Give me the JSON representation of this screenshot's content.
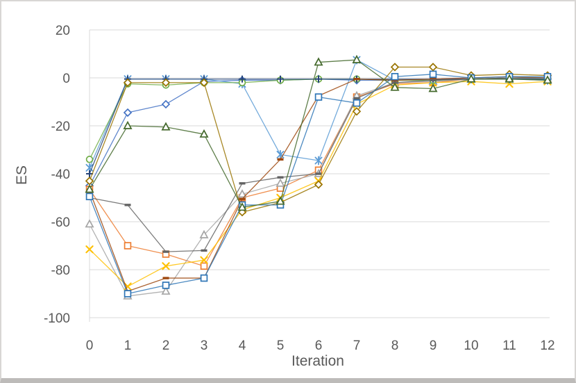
{
  "figure": {
    "background": "#FFFFFF",
    "frame_border_color": "#D8D6D4",
    "bottom_bar_color": "#BDBBB9"
  },
  "chart_data": {
    "type": "line",
    "title": "",
    "xlabel": "Iteration",
    "ylabel": "ES",
    "xlim": [
      0,
      12
    ],
    "ylim": [
      -100,
      20
    ],
    "grid": "horizontal",
    "gridline_color": "#D9D9D9",
    "axis_line_color": "#D9D9D9",
    "tick_label_color": "#595959",
    "legend_position": "none",
    "xticks": [
      0,
      1,
      2,
      3,
      4,
      5,
      6,
      7,
      8,
      9,
      10,
      11,
      12
    ],
    "xtick_labels": [
      "0",
      "1",
      "2",
      "3",
      "4",
      "5",
      "6",
      "7",
      "8",
      "9",
      "10",
      "11",
      "12"
    ],
    "yticks": [
      20,
      0,
      -20,
      -40,
      -60,
      -80,
      -100
    ],
    "ytick_labels": [
      "20",
      "0",
      "-20",
      "-40",
      "-60",
      "-80",
      "-100"
    ],
    "x": [
      0,
      1,
      2,
      3,
      4,
      5,
      6,
      7,
      8,
      9,
      10,
      11,
      12
    ],
    "series": [
      {
        "name": "blue-diamond",
        "marker": "diamond",
        "color": "#4472C4",
        "values": [
          -45,
          -14.5,
          -11,
          -1.5,
          -1,
          -1,
          -0.5,
          -1,
          -1,
          -0.5,
          -0.5,
          -0.5,
          -0.5
        ]
      },
      {
        "name": "orange-square",
        "marker": "square",
        "color": "#ED7D31",
        "values": [
          -46.5,
          -70,
          -73.5,
          -78.5,
          -50,
          -46,
          -38.5,
          -8,
          -2.5,
          -2,
          -0.5,
          0,
          0
        ]
      },
      {
        "name": "gray-triangle",
        "marker": "triangle",
        "color": "#A5A5A5",
        "values": [
          -61,
          -91,
          -89,
          -65.5,
          -48.5,
          -44,
          -40,
          -7.5,
          -2,
          -1.5,
          -0.5,
          0,
          -0.5
        ]
      },
      {
        "name": "gold-x",
        "marker": "x",
        "color": "#FFC000",
        "values": [
          -71.5,
          -87,
          -78.5,
          -76,
          -55,
          -50,
          -43,
          -11,
          -3,
          -2,
          -1.5,
          -2.5,
          -1.5
        ]
      },
      {
        "name": "ltblue-asterisk",
        "marker": "asterisk",
        "color": "#5B9BD5",
        "values": [
          -37.5,
          -0.5,
          -0.5,
          -0.5,
          -2.5,
          -32,
          -34.5,
          7.5,
          -1,
          -1,
          -0.5,
          -0.5,
          -1
        ]
      },
      {
        "name": "green-circle",
        "marker": "circle",
        "color": "#70AD47",
        "values": [
          -34,
          -2.5,
          -3,
          -2,
          -2,
          -1,
          -0.5,
          -0.5,
          -1,
          -1,
          -0.5,
          -0.5,
          -0.5
        ]
      },
      {
        "name": "navy-plus",
        "marker": "plus",
        "color": "#264478",
        "values": [
          -40,
          -0.5,
          -0.5,
          -0.5,
          -0.5,
          -0.5,
          -0.5,
          -0.5,
          -0.5,
          -0.5,
          -0.5,
          -0.5,
          -0.5
        ]
      },
      {
        "name": "dkorange-dash",
        "marker": "dash",
        "color": "#9E480E",
        "values": [
          -47,
          -89,
          -83.5,
          -83.5,
          -50.5,
          -34,
          -7.5,
          -0.5,
          -1,
          -0.5,
          0,
          0.5,
          0
        ]
      },
      {
        "name": "dkgray-dash",
        "marker": "dash",
        "color": "#636363",
        "values": [
          -50,
          -53,
          -72.5,
          -72,
          -44,
          -41.5,
          -40,
          -8.5,
          -2,
          -1,
          -0.5,
          0,
          0
        ]
      },
      {
        "name": "dkgold-diamond",
        "marker": "diamond",
        "color": "#997300",
        "values": [
          -43,
          -2,
          -2,
          -2,
          -56,
          -52,
          -44.5,
          -14,
          4.5,
          4.5,
          1,
          1.5,
          1
        ]
      },
      {
        "name": "blue-square",
        "marker": "square",
        "color": "#2E75B6",
        "values": [
          -49.5,
          -90,
          -86.5,
          -83.5,
          -53,
          -53,
          -8,
          -10.5,
          0.5,
          1.5,
          0,
          0.5,
          0.5
        ]
      },
      {
        "name": "dkgreen-triangle",
        "marker": "triangle",
        "color": "#43682B",
        "values": [
          -46.5,
          -20,
          -20.5,
          -23.5,
          -54,
          -51.5,
          6.5,
          7.5,
          -4,
          -4.5,
          -0.5,
          -0.5,
          -1
        ]
      }
    ]
  }
}
